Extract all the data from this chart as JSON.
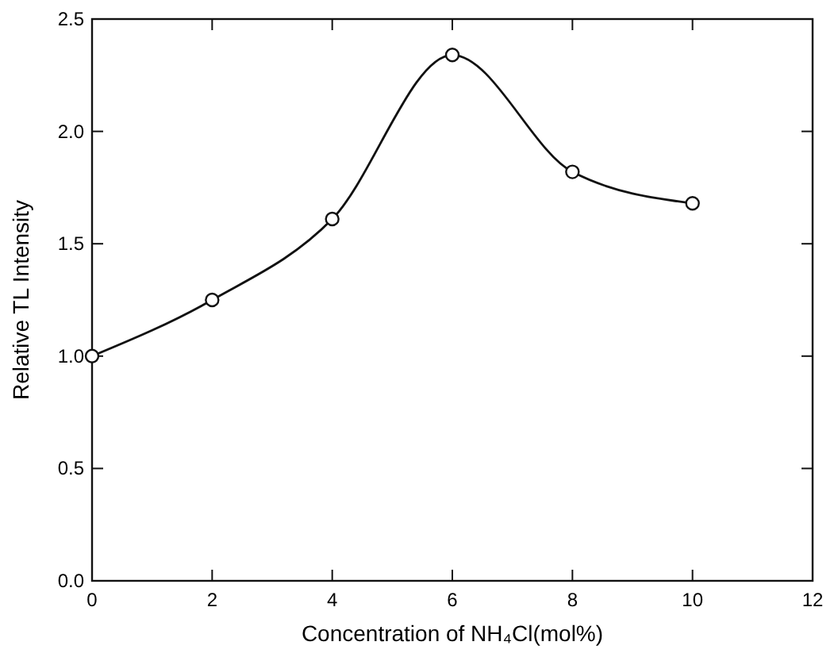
{
  "chart_data": {
    "type": "line",
    "xlabel": "Concentration of NH₄Cl(mol%)",
    "ylabel": "Relative TL Intensity",
    "x": [
      0,
      2,
      4,
      6,
      8,
      10
    ],
    "series": [
      {
        "color": "#111111",
        "values": [
          1.0,
          1.25,
          1.61,
          2.34,
          1.82,
          1.68
        ]
      }
    ],
    "xlim": [
      0,
      12
    ],
    "xticks": [
      0,
      2,
      4,
      6,
      8,
      10,
      12
    ],
    "ylim": [
      0,
      2.5
    ],
    "yticks": [
      {
        "value": 0,
        "label": "0.0"
      },
      {
        "value": 0.5,
        "label": "0.5"
      },
      {
        "value": 1,
        "label": "1.0"
      },
      {
        "value": 1.5,
        "label": "1.5"
      },
      {
        "value": 2,
        "label": "2.0"
      },
      {
        "value": 2.5,
        "label": "2.5"
      }
    ],
    "marker": "circle",
    "line_style": "solid"
  }
}
